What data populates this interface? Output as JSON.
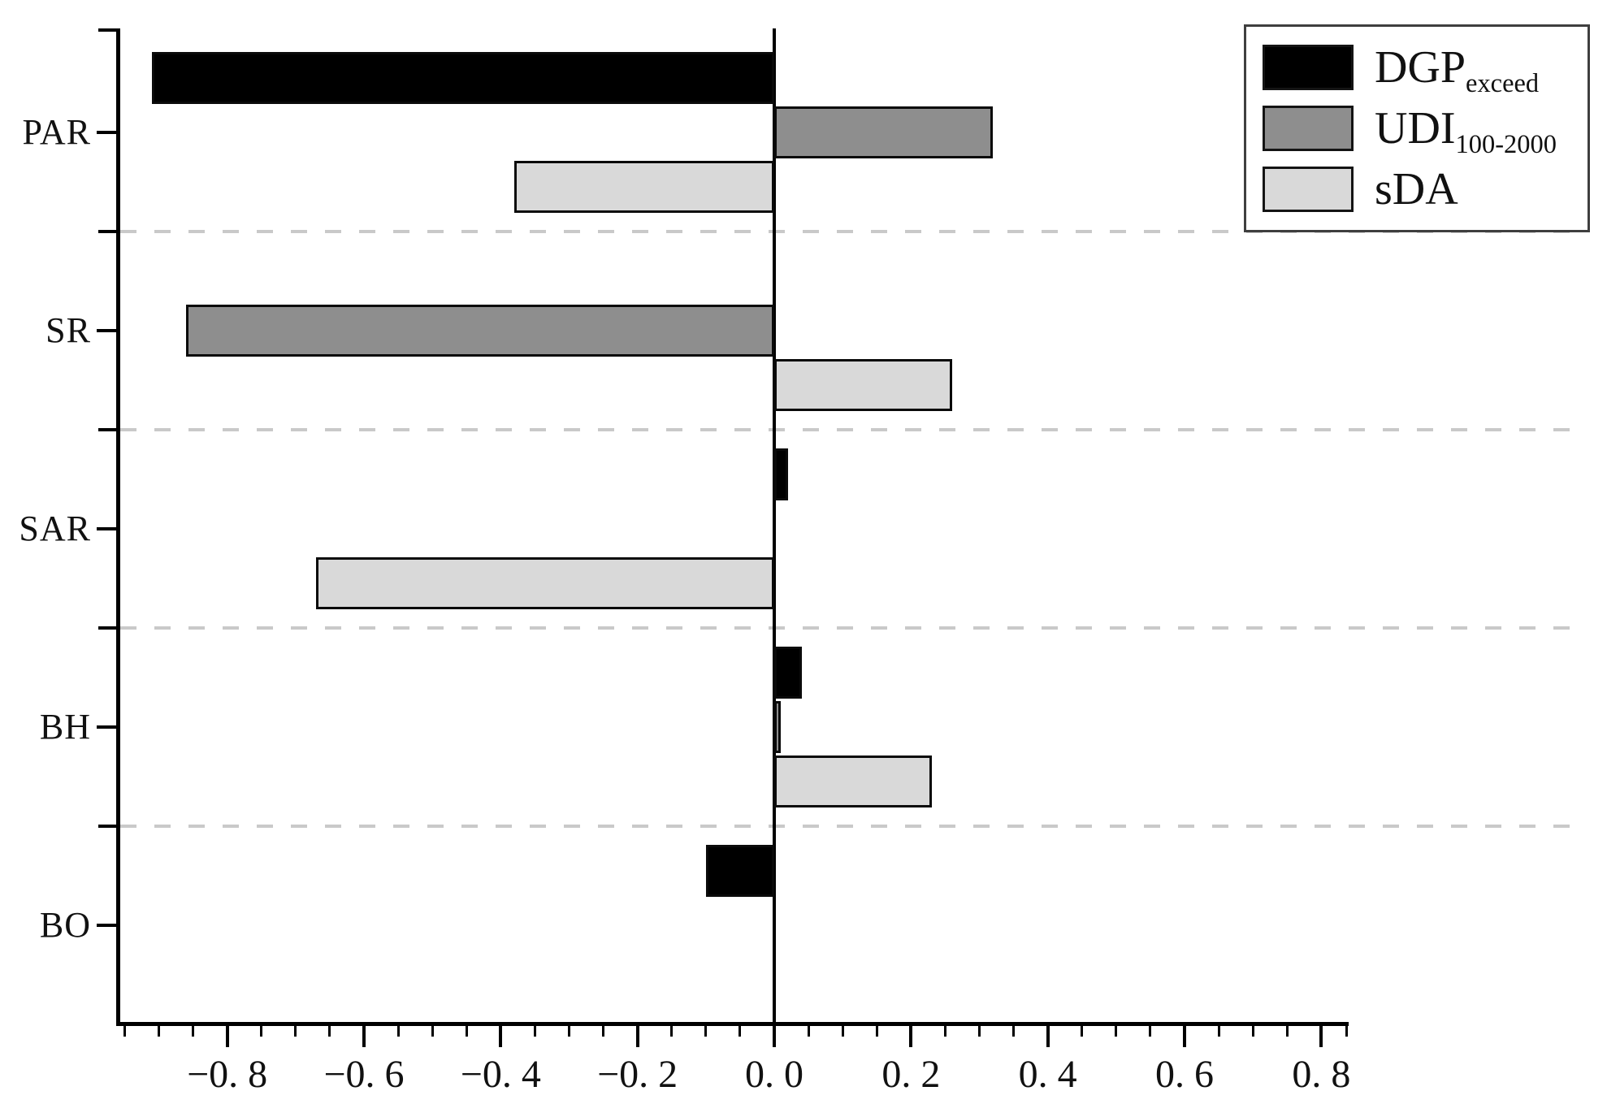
{
  "chart_data": {
    "type": "bar",
    "orientation": "horizontal",
    "title": "",
    "xlabel": "",
    "ylabel": "",
    "categories": [
      "PAR",
      "SR",
      "SAR",
      "BH",
      "BO"
    ],
    "series": [
      {
        "name": "DGP_exceed",
        "label_main": "DGP",
        "label_sub": "exceed",
        "color": "#000000",
        "values": [
          -0.91,
          0,
          0.02,
          0.04,
          -0.1
        ]
      },
      {
        "name": "UDI_100-2000",
        "label_main": "UDI",
        "label_sub": "100-2000",
        "color": "#8e8e8e",
        "values": [
          0.32,
          -0.86,
          0,
          0.01,
          0
        ]
      },
      {
        "name": "sDA",
        "label_main": "sDA",
        "label_sub": "",
        "color": "#d9d9d9",
        "values": [
          -0.38,
          0.26,
          -0.67,
          0.23,
          0
        ]
      }
    ],
    "xlim": [
      -0.96,
      0.84
    ],
    "x_ticks": [
      -0.8,
      -0.6,
      -0.4,
      -0.2,
      0.0,
      0.2,
      0.4,
      0.6,
      0.8
    ],
    "x_tick_labels": [
      "−0. 8",
      "−0. 6",
      "−0. 4",
      "−0. 2",
      "0. 0",
      "0. 2",
      "0. 4",
      "0. 6",
      "0. 8"
    ],
    "x_minor_tick_step": 0.05,
    "grid": {
      "lines": "dashed horizontal between category groups",
      "color": "#c9c9c9"
    },
    "legend_position": "upper right",
    "axis_color": "#000000",
    "background_color": "#ffffff"
  }
}
